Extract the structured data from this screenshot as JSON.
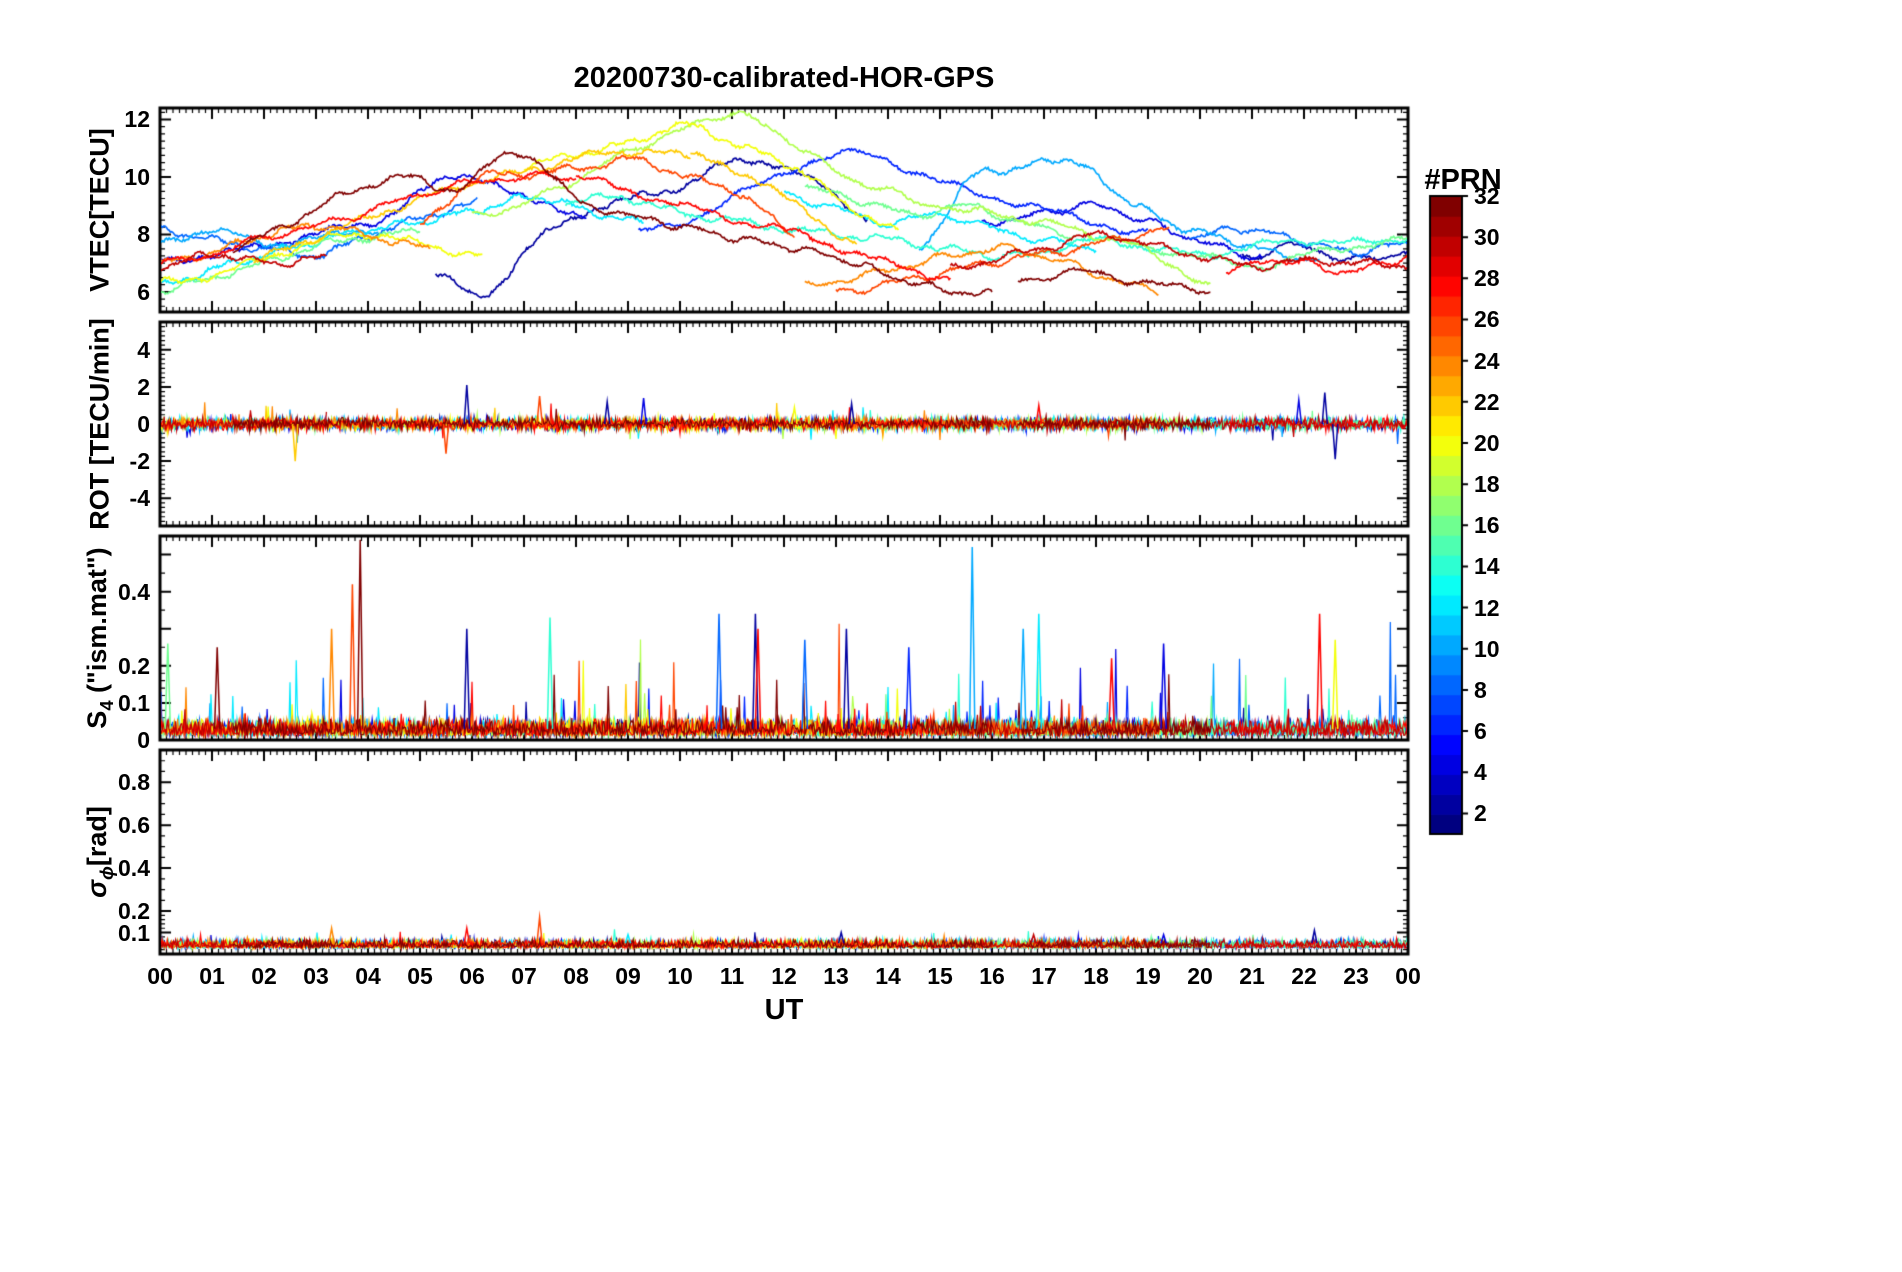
{
  "title": "20200730-calibrated-HOR-GPS",
  "xlabel": "UT",
  "colorbar": {
    "title": "#PRN",
    "min": 1,
    "max": 32,
    "tick_labels": [
      2,
      4,
      6,
      8,
      10,
      12,
      14,
      16,
      18,
      20,
      22,
      24,
      26,
      28,
      30,
      32
    ],
    "colormap": "jet"
  },
  "chart_data": {
    "type": "line",
    "x_range_hours": [
      0,
      24
    ],
    "x_tick_labels": [
      "00",
      "01",
      "02",
      "03",
      "04",
      "05",
      "06",
      "07",
      "08",
      "09",
      "10",
      "11",
      "12",
      "13",
      "14",
      "15",
      "16",
      "17",
      "18",
      "19",
      "20",
      "21",
      "22",
      "23",
      "00"
    ],
    "panels": [
      {
        "id": "vtec",
        "ylabel_parts": [
          {
            "t": "VTEC[TECU]"
          }
        ],
        "ylim": [
          5.3,
          12.4
        ],
        "yticks": [
          {
            "v": 6,
            "l": "6"
          },
          {
            "v": 8,
            "l": "8"
          },
          {
            "v": 10,
            "l": "10"
          },
          {
            "v": 12,
            "l": "12"
          }
        ],
        "minor_step": 0.25,
        "jitter": {
          "slow": 0.1,
          "fast": 0.06,
          "fine": 0.1
        }
      },
      {
        "id": "rot",
        "ylabel_parts": [
          {
            "t": "ROT [TECU/min]"
          }
        ],
        "ylim": [
          -5.5,
          5.5
        ],
        "yticks": [
          {
            "v": -4,
            "l": "-4"
          },
          {
            "v": -2,
            "l": "-2"
          },
          {
            "v": 0,
            "l": "0"
          },
          {
            "v": 2,
            "l": "2"
          },
          {
            "v": 4,
            "l": "4"
          }
        ],
        "minor_step": 0.25,
        "noise_sigma": 0.16,
        "spike_prob": 0.005,
        "spike_amp": 1.1,
        "events": [
          {
            "prn": 2,
            "t": 5.9,
            "v": 2.1
          },
          {
            "prn": 2,
            "t": 8.6,
            "v": 1.2
          },
          {
            "prn": 4,
            "t": 9.3,
            "v": 1.4
          },
          {
            "prn": 2,
            "t": 13.3,
            "v": 1.1
          },
          {
            "prn": 22,
            "t": 2.6,
            "v": -2.0
          },
          {
            "prn": 26,
            "t": 5.5,
            "v": -1.6
          },
          {
            "prn": 26,
            "t": 7.3,
            "v": 1.5
          },
          {
            "prn": 2,
            "t": 22.4,
            "v": 1.7
          },
          {
            "prn": 2,
            "t": 22.6,
            "v": -1.9
          },
          {
            "prn": 4,
            "t": 21.9,
            "v": 1.3
          },
          {
            "prn": 28,
            "t": 16.9,
            "v": 1.0
          },
          {
            "prn": 20,
            "t": 12.2,
            "v": 0.9
          }
        ]
      },
      {
        "id": "s4",
        "ylabel_parts": [
          {
            "t": "S"
          },
          {
            "t": "4",
            "s": 1
          },
          {
            "t": " (\"ism.mat\")"
          }
        ],
        "ylim": [
          0,
          0.55
        ],
        "yticks": [
          {
            "v": 0,
            "l": "0"
          },
          {
            "v": 0.1,
            "l": "0.1"
          },
          {
            "v": 0.2,
            "l": "0.2"
          },
          {
            "v": 0.3,
            "l": ""
          },
          {
            "v": 0.4,
            "l": "0.4"
          },
          {
            "v": 0.5,
            "l": ""
          }
        ],
        "minors": [
          0.02,
          0.04,
          0.06,
          0.08,
          0.12,
          0.14,
          0.16,
          0.18,
          0.25,
          0.35,
          0.45
        ],
        "base": 0.05,
        "spike_prob": 0.028,
        "spike_amp": 0.3,
        "events": [
          {
            "prn": 32,
            "t": 3.85,
            "v": 0.54
          },
          {
            "prn": 26,
            "t": 3.7,
            "v": 0.42
          },
          {
            "prn": 24,
            "t": 3.3,
            "v": 0.3
          },
          {
            "prn": 10,
            "t": 15.62,
            "v": 0.52
          },
          {
            "prn": 12,
            "t": 16.9,
            "v": 0.34
          },
          {
            "prn": 10,
            "t": 16.6,
            "v": 0.3
          },
          {
            "prn": 8,
            "t": 10.75,
            "v": 0.34
          },
          {
            "prn": 2,
            "t": 11.45,
            "v": 0.34
          },
          {
            "prn": 28,
            "t": 11.5,
            "v": 0.3
          },
          {
            "prn": 2,
            "t": 5.9,
            "v": 0.3
          },
          {
            "prn": 14,
            "t": 7.5,
            "v": 0.33
          },
          {
            "prn": 8,
            "t": 12.4,
            "v": 0.27
          },
          {
            "prn": 28,
            "t": 22.3,
            "v": 0.34
          },
          {
            "prn": 20,
            "t": 22.6,
            "v": 0.27
          },
          {
            "prn": 28,
            "t": 18.3,
            "v": 0.22
          },
          {
            "prn": 4,
            "t": 19.3,
            "v": 0.26
          },
          {
            "prn": 32,
            "t": 1.1,
            "v": 0.25
          },
          {
            "prn": 16,
            "t": 0.15,
            "v": 0.26
          },
          {
            "prn": 6,
            "t": 14.4,
            "v": 0.25
          },
          {
            "prn": 2,
            "t": 13.2,
            "v": 0.3
          }
        ]
      },
      {
        "id": "sigma_phi",
        "ylabel_parts": [
          {
            "t": "σ",
            "i": 1
          },
          {
            "t": "ϕ",
            "s": 1,
            "i": 1
          },
          {
            "t": "[rad]"
          }
        ],
        "ylim": [
          0,
          0.95
        ],
        "yticks": [
          {
            "v": 0.1,
            "l": "0.1"
          },
          {
            "v": 0.2,
            "l": "0.2"
          },
          {
            "v": 0.4,
            "l": "0.4"
          },
          {
            "v": 0.6,
            "l": "0.6"
          },
          {
            "v": 0.8,
            "l": "0.8"
          }
        ],
        "minors": [
          0.02,
          0.04,
          0.06,
          0.08,
          0.12,
          0.14,
          0.16,
          0.18,
          0.25,
          0.3,
          0.35,
          0.45,
          0.5,
          0.55,
          0.65,
          0.7,
          0.75,
          0.85,
          0.9
        ],
        "base": 0.045,
        "spike_prob": 0.006,
        "spike_amp": 0.06,
        "events": [
          {
            "prn": 26,
            "t": 7.3,
            "v": 0.17
          },
          {
            "prn": 24,
            "t": 3.3,
            "v": 0.12
          },
          {
            "prn": 28,
            "t": 5.9,
            "v": 0.12
          },
          {
            "prn": 2,
            "t": 13.1,
            "v": 0.1
          },
          {
            "prn": 2,
            "t": 22.2,
            "v": 0.11
          },
          {
            "prn": 30,
            "t": 16.8,
            "v": 0.09
          },
          {
            "prn": 12,
            "t": 9.0,
            "v": 0.09
          },
          {
            "prn": 4,
            "t": 19.3,
            "v": 0.09
          }
        ]
      }
    ],
    "arcs": [
      {
        "prn": 2,
        "t0": 5.3,
        "t1": 13.6,
        "v": [
          6.6,
          5.9,
          7.6,
          8.7,
          9.2,
          9.6,
          10.4,
          10.5,
          9.7,
          8.6
        ]
      },
      {
        "prn": 2,
        "t0": 20.8,
        "t1": 24,
        "v": [
          7.2,
          7.6,
          7.1,
          7.4
        ]
      },
      {
        "prn": 4,
        "t0": 0,
        "t1": 8.2,
        "v": [
          7.1,
          7.3,
          7.6,
          8.1,
          8.4,
          9.6,
          10.0,
          9.1,
          8.7
        ]
      },
      {
        "prn": 4,
        "t0": 15.8,
        "t1": 21.2,
        "v": [
          8.4,
          8.7,
          9.0,
          8.4,
          7.7,
          7.2
        ]
      },
      {
        "prn": 6,
        "t0": 9.2,
        "t1": 19.0,
        "v": [
          8.1,
          8.6,
          9.6,
          10.5,
          10.8,
          10.1,
          9.4,
          9.0,
          8.4,
          8.1
        ]
      },
      {
        "prn": 8,
        "t0": 0,
        "t1": 6.1,
        "v": [
          8.2,
          7.8,
          7.5,
          7.3,
          8.0,
          8.6,
          9.1
        ]
      },
      {
        "prn": 8,
        "t0": 19.8,
        "t1": 24,
        "v": [
          7.9,
          8.2,
          7.8,
          7.4,
          7.7
        ]
      },
      {
        "prn": 10,
        "t0": 0,
        "t1": 4.2,
        "v": [
          7.8,
          8.1,
          7.7,
          7.9,
          8.2
        ]
      },
      {
        "prn": 10,
        "t0": 14.6,
        "t1": 22.3,
        "v": [
          7.4,
          9.9,
          10.3,
          10.6,
          9.4,
          8.4,
          7.9,
          7.4,
          7.1
        ]
      },
      {
        "prn": 12,
        "t0": 0,
        "t1": 9.3,
        "v": [
          6.2,
          6.8,
          7.3,
          7.8,
          8.2,
          8.5,
          8.9,
          9.3,
          8.8,
          8.4
        ]
      },
      {
        "prn": 12,
        "t0": 12.0,
        "t1": 18.0,
        "v": [
          9.4,
          8.9,
          8.4,
          8.7,
          8.2,
          7.8,
          7.5
        ]
      },
      {
        "prn": 14,
        "t0": 7.8,
        "t1": 16.2,
        "v": [
          9.1,
          9.3,
          8.8,
          8.5,
          8.2,
          8.0,
          7.8,
          7.5,
          7.2
        ]
      },
      {
        "prn": 14,
        "t0": 16.2,
        "t1": 24,
        "v": [
          7.2,
          7.5,
          7.8,
          7.5,
          7.3,
          7.6,
          7.8,
          7.7,
          7.9
        ]
      },
      {
        "prn": 16,
        "t0": 0,
        "t1": 5.0,
        "v": [
          6.0,
          6.5,
          7.0,
          7.6,
          7.9,
          8.1
        ]
      },
      {
        "prn": 16,
        "t0": 12.4,
        "t1": 17.6,
        "v": [
          9.6,
          9.2,
          8.7,
          9.0,
          8.4,
          8.0
        ]
      },
      {
        "prn": 16,
        "t0": 18.2,
        "t1": 24,
        "v": [
          7.8,
          7.5,
          7.2,
          6.9,
          7.3,
          7.6,
          7.8
        ]
      },
      {
        "prn": 18,
        "t0": 6.0,
        "t1": 15.0,
        "v": [
          8.6,
          9.1,
          9.9,
          10.9,
          11.6,
          12.2,
          11.4,
          10.2,
          9.5,
          9.0
        ]
      },
      {
        "prn": 18,
        "t0": 15.0,
        "t1": 20.2,
        "v": [
          9.0,
          8.7,
          8.4,
          7.9,
          7.3,
          6.1
        ]
      },
      {
        "prn": 20,
        "t0": 0,
        "t1": 6.2,
        "v": [
          6.3,
          6.6,
          7.2,
          7.8,
          8.0,
          7.6,
          7.3
        ]
      },
      {
        "prn": 20,
        "t0": 7.0,
        "t1": 14.2,
        "v": [
          10.4,
          10.8,
          11.2,
          11.8,
          11.1,
          10.4,
          9.1,
          8.1
        ]
      },
      {
        "prn": 22,
        "t0": 1.8,
        "t1": 10.2,
        "v": [
          7.1,
          7.8,
          8.5,
          9.2,
          9.8,
          10.2,
          10.7,
          10.9,
          10.7
        ]
      },
      {
        "prn": 22,
        "t0": 10.2,
        "t1": 13.4,
        "v": [
          10.7,
          10.1,
          8.9,
          7.7
        ]
      },
      {
        "prn": 24,
        "t0": 0,
        "t1": 5.2,
        "v": [
          7.0,
          7.4,
          8.0,
          8.3,
          7.9,
          7.5
        ]
      },
      {
        "prn": 24,
        "t0": 12.4,
        "t1": 19.2,
        "v": [
          6.2,
          6.5,
          6.9,
          7.3,
          7.5,
          7.1,
          6.5,
          6.0
        ]
      },
      {
        "prn": 26,
        "t0": 5.0,
        "t1": 12.2,
        "v": [
          8.3,
          9.9,
          10.1,
          10.3,
          10.6,
          10.0,
          9.4,
          8.0
        ]
      },
      {
        "prn": 26,
        "t0": 13.0,
        "t1": 19.4,
        "v": [
          6.0,
          6.3,
          6.7,
          7.1,
          7.4,
          7.8,
          8.2
        ]
      },
      {
        "prn": 28,
        "t0": 0,
        "t1": 8.0,
        "v": [
          7.0,
          7.3,
          7.9,
          8.3,
          8.8,
          9.4,
          9.8,
          10.0,
          10.0
        ]
      },
      {
        "prn": 28,
        "t0": 8.0,
        "t1": 15.2,
        "v": [
          10.0,
          9.5,
          9.0,
          8.5,
          8.1,
          7.5,
          6.9,
          6.5
        ]
      },
      {
        "prn": 28,
        "t0": 20.5,
        "t1": 24,
        "v": [
          6.8,
          7.1,
          6.7,
          7.2
        ]
      },
      {
        "prn": 30,
        "t0": 0,
        "t1": 3.2,
        "v": [
          6.9,
          7.3,
          7.0,
          7.2
        ]
      },
      {
        "prn": 30,
        "t0": 15.2,
        "t1": 24,
        "v": [
          6.8,
          7.2,
          7.6,
          8.0,
          7.6,
          7.2,
          6.9,
          7.1,
          7.0,
          6.9
        ]
      },
      {
        "prn": 32,
        "t0": 1.4,
        "t1": 9.0,
        "v": [
          7.5,
          8.4,
          9.4,
          10.0,
          9.6,
          10.9,
          9.4,
          8.6
        ]
      },
      {
        "prn": 32,
        "t0": 9.0,
        "t1": 16.0,
        "v": [
          8.6,
          8.3,
          7.9,
          7.6,
          7.2,
          6.6,
          6.1,
          5.9
        ]
      },
      {
        "prn": 32,
        "t0": 16.5,
        "t1": 20.2,
        "v": [
          6.4,
          6.7,
          6.3,
          6.1
        ]
      }
    ]
  }
}
